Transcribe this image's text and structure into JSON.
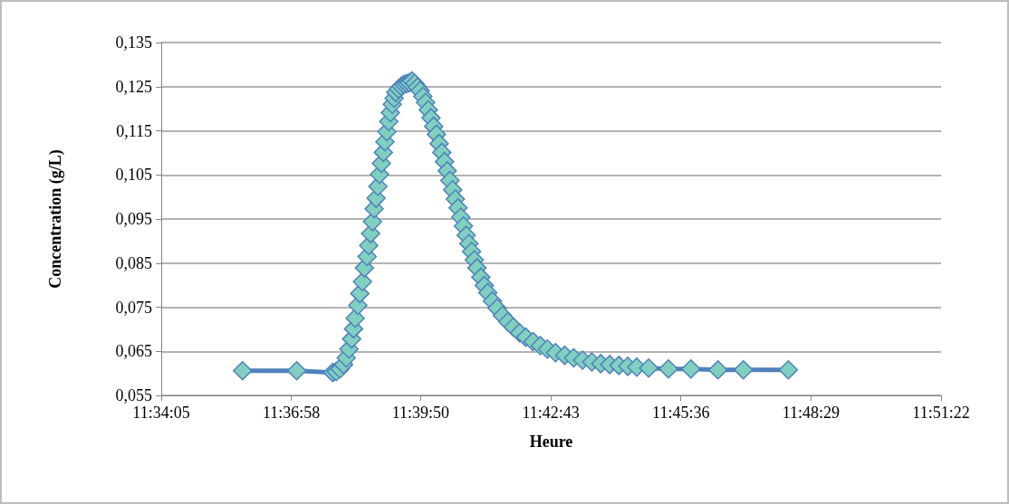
{
  "chart_data": {
    "type": "line",
    "xlabel": "Heure",
    "ylabel": "Concentration (g/L)",
    "xlim": [
      11.568056,
      11.856111
    ],
    "xticks": [
      {
        "value": 11.568056,
        "label": "11:34:05"
      },
      {
        "value": 11.616111,
        "label": "11:36:58"
      },
      {
        "value": 11.663889,
        "label": "11:39:50"
      },
      {
        "value": 11.711944,
        "label": "11:42:43"
      },
      {
        "value": 11.76,
        "label": "11:45:36"
      },
      {
        "value": 11.808056,
        "label": "11:48:29"
      },
      {
        "value": 11.856111,
        "label": "11:51:22"
      }
    ],
    "ylim": [
      0.055,
      0.135
    ],
    "yticks": [
      {
        "value": 0.055,
        "label": "0,055"
      },
      {
        "value": 0.065,
        "label": "0,065"
      },
      {
        "value": 0.075,
        "label": "0,075"
      },
      {
        "value": 0.085,
        "label": "0,085"
      },
      {
        "value": 0.095,
        "label": "0,095"
      },
      {
        "value": 0.105,
        "label": "0,105"
      },
      {
        "value": 0.115,
        "label": "0,115"
      },
      {
        "value": 0.125,
        "label": "0,125"
      },
      {
        "value": 0.135,
        "label": "0,135"
      }
    ],
    "grid": "y",
    "marker": "diamond",
    "line_style": "solid",
    "series": [
      {
        "color": "#4f81bd",
        "x": [
          11.5981,
          11.6181,
          11.6314,
          11.6327,
          11.6341,
          11.6354,
          11.6364,
          11.6374,
          11.6384,
          11.6391,
          11.6397,
          11.6407,
          11.6414,
          11.6424,
          11.6431,
          11.6441,
          11.6447,
          11.6454,
          11.6461,
          11.6467,
          11.6474,
          11.6481,
          11.6487,
          11.6494,
          11.6501,
          11.6507,
          11.6514,
          11.6521,
          11.6527,
          11.6534,
          11.6541,
          11.6547,
          11.6557,
          11.6567,
          11.6577,
          11.6587,
          11.6597,
          11.6607,
          11.6617,
          11.6627,
          11.6637,
          11.6647,
          11.6657,
          11.6667,
          11.6677,
          11.6687,
          11.6697,
          11.6707,
          11.6717,
          11.6727,
          11.6737,
          11.6747,
          11.6757,
          11.6767,
          11.6777,
          11.6787,
          11.6797,
          11.6807,
          11.6817,
          11.6827,
          11.6837,
          11.6847,
          11.6861,
          11.6874,
          11.6887,
          11.6904,
          11.6921,
          11.6941,
          11.6961,
          11.6981,
          11.7004,
          11.7027,
          11.7054,
          11.7081,
          11.7107,
          11.7137,
          11.7171,
          11.7204,
          11.7237,
          11.7271,
          11.7304,
          11.7337,
          11.7371,
          11.7404,
          11.7437,
          11.7481,
          11.7554,
          11.7637,
          11.7737,
          11.7831,
          11.7997
        ],
        "values": [
          0.0606,
          0.0606,
          0.0602,
          0.0604,
          0.061,
          0.062,
          0.0635,
          0.0655,
          0.0678,
          0.0701,
          0.0725,
          0.0754,
          0.0781,
          0.0808,
          0.0839,
          0.0865,
          0.089,
          0.0917,
          0.0944,
          0.0973,
          0.0997,
          0.1024,
          0.1051,
          0.1076,
          0.1101,
          0.1125,
          0.1148,
          0.1171,
          0.1191,
          0.121,
          0.1224,
          0.1237,
          0.1245,
          0.1251,
          0.1255,
          0.1257,
          0.1259,
          0.1263,
          0.1257,
          0.1249,
          0.1241,
          0.1228,
          0.1214,
          0.1197,
          0.1179,
          0.116,
          0.1142,
          0.1121,
          0.1101,
          0.108,
          0.1059,
          0.1037,
          0.1016,
          0.0995,
          0.0975,
          0.0954,
          0.0934,
          0.0913,
          0.0894,
          0.0876,
          0.0857,
          0.0839,
          0.0818,
          0.0799,
          0.0783,
          0.0764,
          0.0748,
          0.0731,
          0.0717,
          0.0705,
          0.0692,
          0.0682,
          0.0672,
          0.0663,
          0.0655,
          0.0647,
          0.0641,
          0.0635,
          0.063,
          0.0626,
          0.0622,
          0.062,
          0.0618,
          0.0616,
          0.0614,
          0.0612,
          0.061,
          0.061,
          0.0608,
          0.0608,
          0.0608
        ]
      }
    ]
  }
}
